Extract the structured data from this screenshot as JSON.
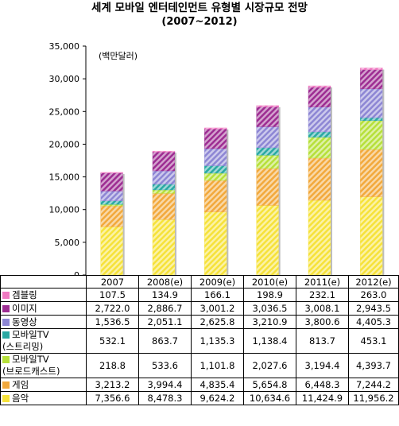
{
  "chart_data": {
    "type": "bar",
    "stacked": true,
    "title": "세계 모바일 엔터테인먼트 유형별 시장규모 전망",
    "subtitle": "(2007~2012)",
    "unit_label": "(백만달러)",
    "ylim": [
      0,
      35000
    ],
    "yticks": [
      "0",
      "5,000",
      "10,000",
      "15,000",
      "20,000",
      "25,000",
      "30,000",
      "35,000"
    ],
    "categories": [
      "2007",
      "2008(e)",
      "2009(e)",
      "2010(e)",
      "2011(e)",
      "2012(e)"
    ],
    "series": [
      {
        "name": "음악",
        "color": "#f6e23a",
        "values": [
          7356.6,
          8478.3,
          9624.2,
          10634.6,
          11424.9,
          11956.2
        ],
        "labels": [
          "7,356.6",
          "8,478.3",
          "9,624.2",
          "10,634.6",
          "11,424.9",
          "11,956.2"
        ]
      },
      {
        "name": "게임",
        "color": "#f2a93c",
        "values": [
          3213.2,
          3994.4,
          4835.4,
          5654.8,
          6448.3,
          7244.2
        ],
        "labels": [
          "3,213.2",
          "3,994.4",
          "4,835.4",
          "5,654.8",
          "6,448.3",
          "7,244.2"
        ]
      },
      {
        "name": "모바일TV\n(브로드캐스트)",
        "color": "#b6e03a",
        "values": [
          218.8,
          533.6,
          1101.8,
          2027.6,
          3194.4,
          4393.7
        ],
        "labels": [
          "218.8",
          "533.6",
          "1,101.8",
          "2,027.6",
          "3,194.4",
          "4,393.7"
        ]
      },
      {
        "name": "모바일TV\n(스트리밍)",
        "color": "#2aa9a3",
        "values": [
          532.1,
          863.7,
          1135.3,
          1138.4,
          813.7,
          453.1
        ],
        "labels": [
          "532.1",
          "863.7",
          "1,135.3",
          "1,138.4",
          "813.7",
          "453.1"
        ]
      },
      {
        "name": "동영상",
        "color": "#8d86d4",
        "values": [
          1536.5,
          2051.1,
          2625.8,
          3210.9,
          3800.6,
          4405.3
        ],
        "labels": [
          "1,536.5",
          "2,051.1",
          "2,625.8",
          "3,210.9",
          "3,800.6",
          "4,405.3"
        ]
      },
      {
        "name": "이미지",
        "color": "#9d2d92",
        "values": [
          2722.0,
          2886.7,
          3001.2,
          3036.5,
          3008.1,
          2943.5
        ],
        "labels": [
          "2,722.0",
          "2,886.7",
          "3,001.2",
          "3,036.5",
          "3,008.1",
          "2,943.5"
        ]
      },
      {
        "name": "겜블링",
        "color": "#f07ac2",
        "values": [
          107.5,
          134.9,
          166.1,
          198.9,
          232.1,
          263.0
        ],
        "labels": [
          "107.5",
          "134.9",
          "166.1",
          "198.9",
          "232.1",
          "263.0"
        ]
      }
    ],
    "table_row_order": [
      "겜블링",
      "이미지",
      "동영상",
      "모바일TV\n(스트리밍)",
      "모바일TV\n(브로드캐스트)",
      "게임",
      "음악"
    ],
    "grid": false,
    "legend": "data-table"
  }
}
